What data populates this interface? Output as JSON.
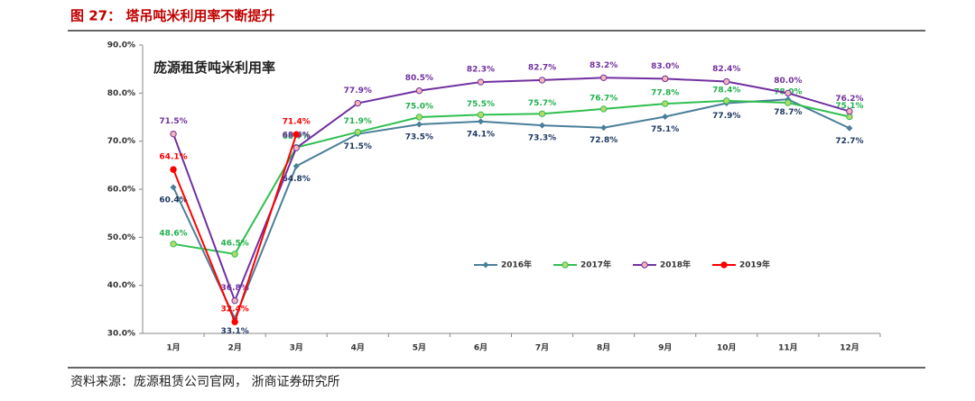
{
  "header": {
    "title": "图 27： 塔吊吨米利用率不断提升"
  },
  "chart_data": {
    "type": "line",
    "title": "庞源租赁吨米利用率",
    "categories": [
      "1月",
      "2月",
      "3月",
      "4月",
      "5月",
      "6月",
      "7月",
      "8月",
      "9月",
      "10月",
      "11月",
      "12月"
    ],
    "series": [
      {
        "name": "2016年",
        "color": "#4a7f99",
        "label_color": "#1f3864",
        "marker": "diamond",
        "values": [
          60.4,
          33.1,
          64.8,
          71.5,
          73.5,
          74.1,
          73.3,
          72.8,
          75.1,
          77.9,
          78.7,
          72.7
        ],
        "value_labels": [
          "60.4%",
          "33.1%",
          "64.8%",
          "71.5%",
          "73.5%",
          "74.1%",
          "73.3%",
          "72.8%",
          "75.1%",
          "77.9%",
          "78.7%",
          "72.7%"
        ]
      },
      {
        "name": "2017年",
        "color": "#2fbf4f",
        "label_color": "#22b14c",
        "marker": "circle",
        "marker_fill": "#b6d96b",
        "values": [
          48.6,
          46.5,
          68.7,
          71.9,
          75.0,
          75.5,
          75.7,
          76.7,
          77.8,
          78.4,
          78.0,
          75.1
        ],
        "value_labels": [
          "48.6%",
          "46.5%",
          "68.7%",
          "71.9%",
          "75.0%",
          "75.5%",
          "75.7%",
          "76.7%",
          "77.8%",
          "78.4%",
          "78.0%",
          "75.1%"
        ]
      },
      {
        "name": "2018年",
        "color": "#7030a0",
        "label_color": "#7030a0",
        "marker": "circle",
        "marker_fill": "#f4b6b6",
        "values": [
          71.5,
          36.8,
          68.6,
          77.9,
          80.5,
          82.3,
          82.7,
          83.2,
          83.0,
          82.4,
          80.0,
          76.2
        ],
        "value_labels": [
          "71.5%",
          "36.8%",
          "68.6%",
          "77.9%",
          "80.5%",
          "82.3%",
          "82.7%",
          "83.2%",
          "83.0%",
          "82.4%",
          "80.0%",
          "76.2%"
        ]
      },
      {
        "name": "2019年",
        "color": "#ff0000",
        "label_color": "#ff0000",
        "marker": "circle",
        "marker_fill": "#ff0000",
        "values": [
          64.1,
          32.4,
          71.4,
          null,
          null,
          null,
          null,
          null,
          null,
          null,
          null,
          null
        ],
        "value_labels": [
          "64.1%",
          "32.4%",
          "71.4%",
          null,
          null,
          null,
          null,
          null,
          null,
          null,
          null,
          null
        ]
      }
    ],
    "ylim": [
      30,
      90
    ],
    "yticks": [
      {
        "value": 30,
        "label": "30.0%"
      },
      {
        "value": 40,
        "label": "40.0%"
      },
      {
        "value": 50,
        "label": "50.0%"
      },
      {
        "value": 60,
        "label": "60.0%"
      },
      {
        "value": 70,
        "label": "70.0%"
      },
      {
        "value": 80,
        "label": "80.0%"
      },
      {
        "value": 90,
        "label": "90.0%"
      }
    ],
    "grid": false
  },
  "footer": {
    "source": "资料来源：庞源租赁公司官网， 浙商证券研究所"
  }
}
